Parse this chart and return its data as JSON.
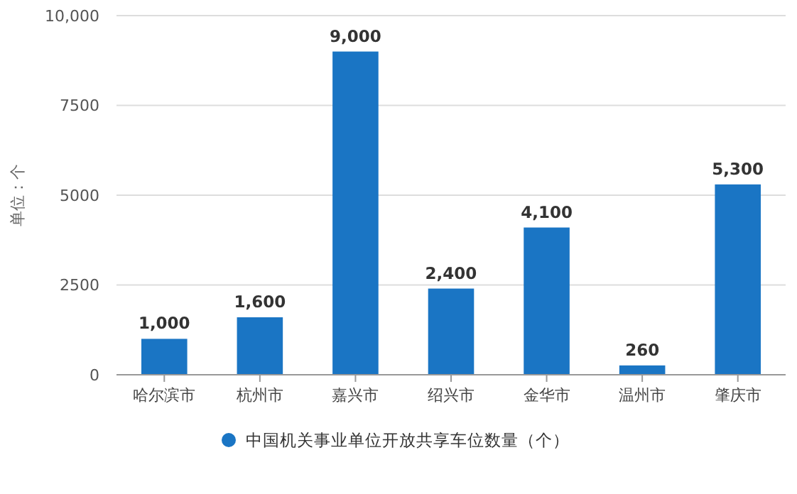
{
  "chart_data": {
    "type": "bar",
    "ylabel": "单位：个",
    "categories": [
      "哈尔滨市",
      "杭州市",
      "嘉兴市",
      "绍兴市",
      "金华市",
      "温州市",
      "肇庆市"
    ],
    "series": [
      {
        "name": "中国机关事业单位开放共享车位数量（个）",
        "color": "#1a75c4",
        "values": [
          1000,
          1600,
          9000,
          2400,
          4100,
          260,
          5300
        ],
        "value_labels": [
          "1,000",
          "1,600",
          "9,000",
          "2,400",
          "4,100",
          "260",
          "5,300"
        ]
      }
    ],
    "ylim": [
      0,
      10000
    ],
    "yticks": [
      0,
      2500,
      5000,
      7500,
      {
        "value": 10000,
        "label": "10,000"
      }
    ],
    "grid": "y",
    "legend": "bottom"
  }
}
